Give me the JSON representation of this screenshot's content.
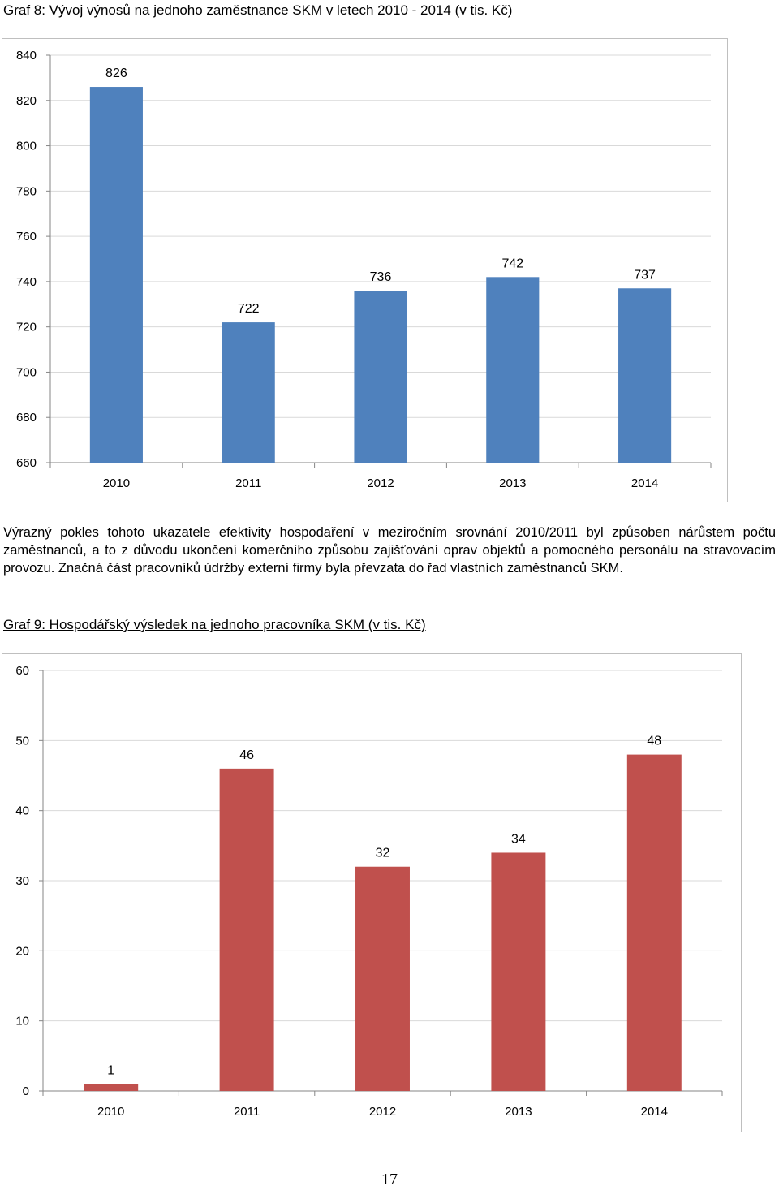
{
  "captions": {
    "graph8": "Graf 8: Vývoj výnosů na jednoho zaměstnance SKM v letech 2010 - 2014 (v tis. Kč)",
    "graph9": "Graf 9: Hospodářský výsledek na jednoho pracovníka SKM (v tis. Kč)"
  },
  "paragraph": "Výrazný pokles tohoto ukazatele efektivity hospodaření v meziročním srovnání 2010/2011 byl způsoben nárůstem počtu zaměstnanců, a to z důvodu ukončení komerčního způsobu zajišťování oprav objektů a pomocného personálu na stravovacím provozu. Značná část pracovníků údržby externí firmy byla převzata do řad vlastních zaměstnanců SKM.",
  "page_number": "17",
  "chart_data": [
    {
      "type": "bar",
      "title": "",
      "categories": [
        "2010",
        "2011",
        "2012",
        "2013",
        "2014"
      ],
      "values": [
        826,
        722,
        736,
        742,
        737
      ],
      "data_labels": [
        "826",
        "722",
        "736",
        "742",
        "737"
      ],
      "ylim": [
        660,
        840
      ],
      "yticks": [
        660,
        680,
        700,
        720,
        740,
        760,
        780,
        800,
        820,
        840
      ],
      "xlabel": "",
      "ylabel": "",
      "grid": true,
      "legend": "none",
      "bar_color": "#4f81bd"
    },
    {
      "type": "bar",
      "title": "",
      "categories": [
        "2010",
        "2011",
        "2012",
        "2013",
        "2014"
      ],
      "values": [
        1,
        46,
        32,
        34,
        48
      ],
      "data_labels": [
        "1",
        "46",
        "32",
        "34",
        "48"
      ],
      "ylim": [
        0,
        60
      ],
      "yticks": [
        0,
        10,
        20,
        30,
        40,
        50,
        60
      ],
      "xlabel": "",
      "ylabel": "",
      "grid": true,
      "legend": "none",
      "bar_color": "#c0504d"
    }
  ]
}
